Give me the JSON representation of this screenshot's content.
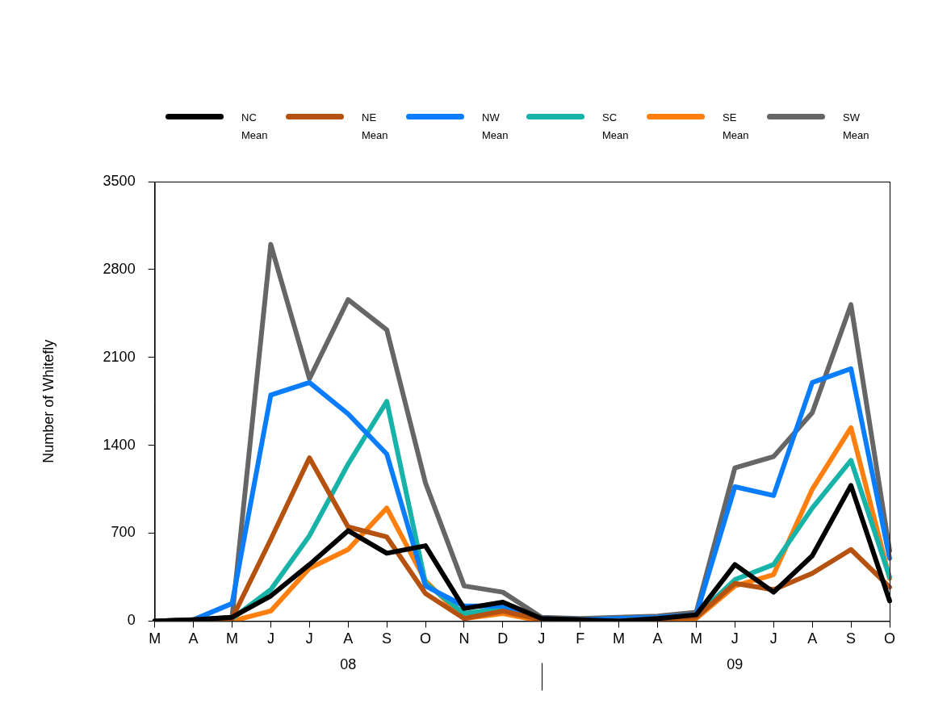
{
  "chart_data": {
    "type": "line",
    "y_label": "Number of Whitefly",
    "categories": [
      "M",
      "A",
      "M",
      "J",
      "J",
      "A",
      "S",
      "O",
      "N",
      "D",
      "J",
      "F",
      "M",
      "A",
      "M",
      "J",
      "J",
      "A",
      "S",
      "O"
    ],
    "annotations": [
      {
        "text": "08",
        "category_index": 5
      },
      {
        "text": "09",
        "category_index": 15
      }
    ],
    "series": [
      {
        "name": "NC Mean",
        "color": "#000000",
        "values": [
          0,
          10,
          30,
          200,
          450,
          720,
          540,
          600,
          100,
          150,
          20,
          10,
          0,
          20,
          50,
          450,
          230,
          520,
          1080,
          160
        ]
      },
      {
        "name": "NE Mean",
        "color": "#b5520f",
        "values": [
          0,
          10,
          20,
          650,
          1300,
          750,
          670,
          220,
          20,
          80,
          10,
          0,
          0,
          20,
          30,
          300,
          250,
          380,
          570,
          270
        ]
      },
      {
        "name": "NW Mean",
        "color": "#0a7dfc",
        "values": [
          0,
          10,
          140,
          1800,
          1900,
          1650,
          1330,
          280,
          120,
          120,
          20,
          10,
          20,
          30,
          50,
          1070,
          1000,
          1900,
          2010,
          500
        ]
      },
      {
        "name": "SC Mean",
        "color": "#17b2a8",
        "values": [
          0,
          10,
          20,
          250,
          680,
          1250,
          1750,
          300,
          60,
          100,
          10,
          0,
          10,
          20,
          40,
          330,
          450,
          900,
          1280,
          350
        ]
      },
      {
        "name": "SE Mean",
        "color": "#ff7f0e",
        "values": [
          0,
          0,
          0,
          80,
          420,
          570,
          900,
          320,
          20,
          60,
          0,
          0,
          0,
          10,
          20,
          280,
          370,
          1050,
          1540,
          340
        ]
      },
      {
        "name": "SW Mean",
        "color": "#666666",
        "values": [
          0,
          10,
          30,
          3000,
          1930,
          2560,
          2320,
          1100,
          280,
          230,
          30,
          20,
          30,
          40,
          70,
          1220,
          1310,
          1660,
          2520,
          560
        ]
      }
    ],
    "ylim": [
      0,
      3500
    ],
    "yticks": [
      0,
      700,
      1400,
      2100,
      2800,
      3500
    ],
    "grid": false,
    "legend": "top"
  }
}
